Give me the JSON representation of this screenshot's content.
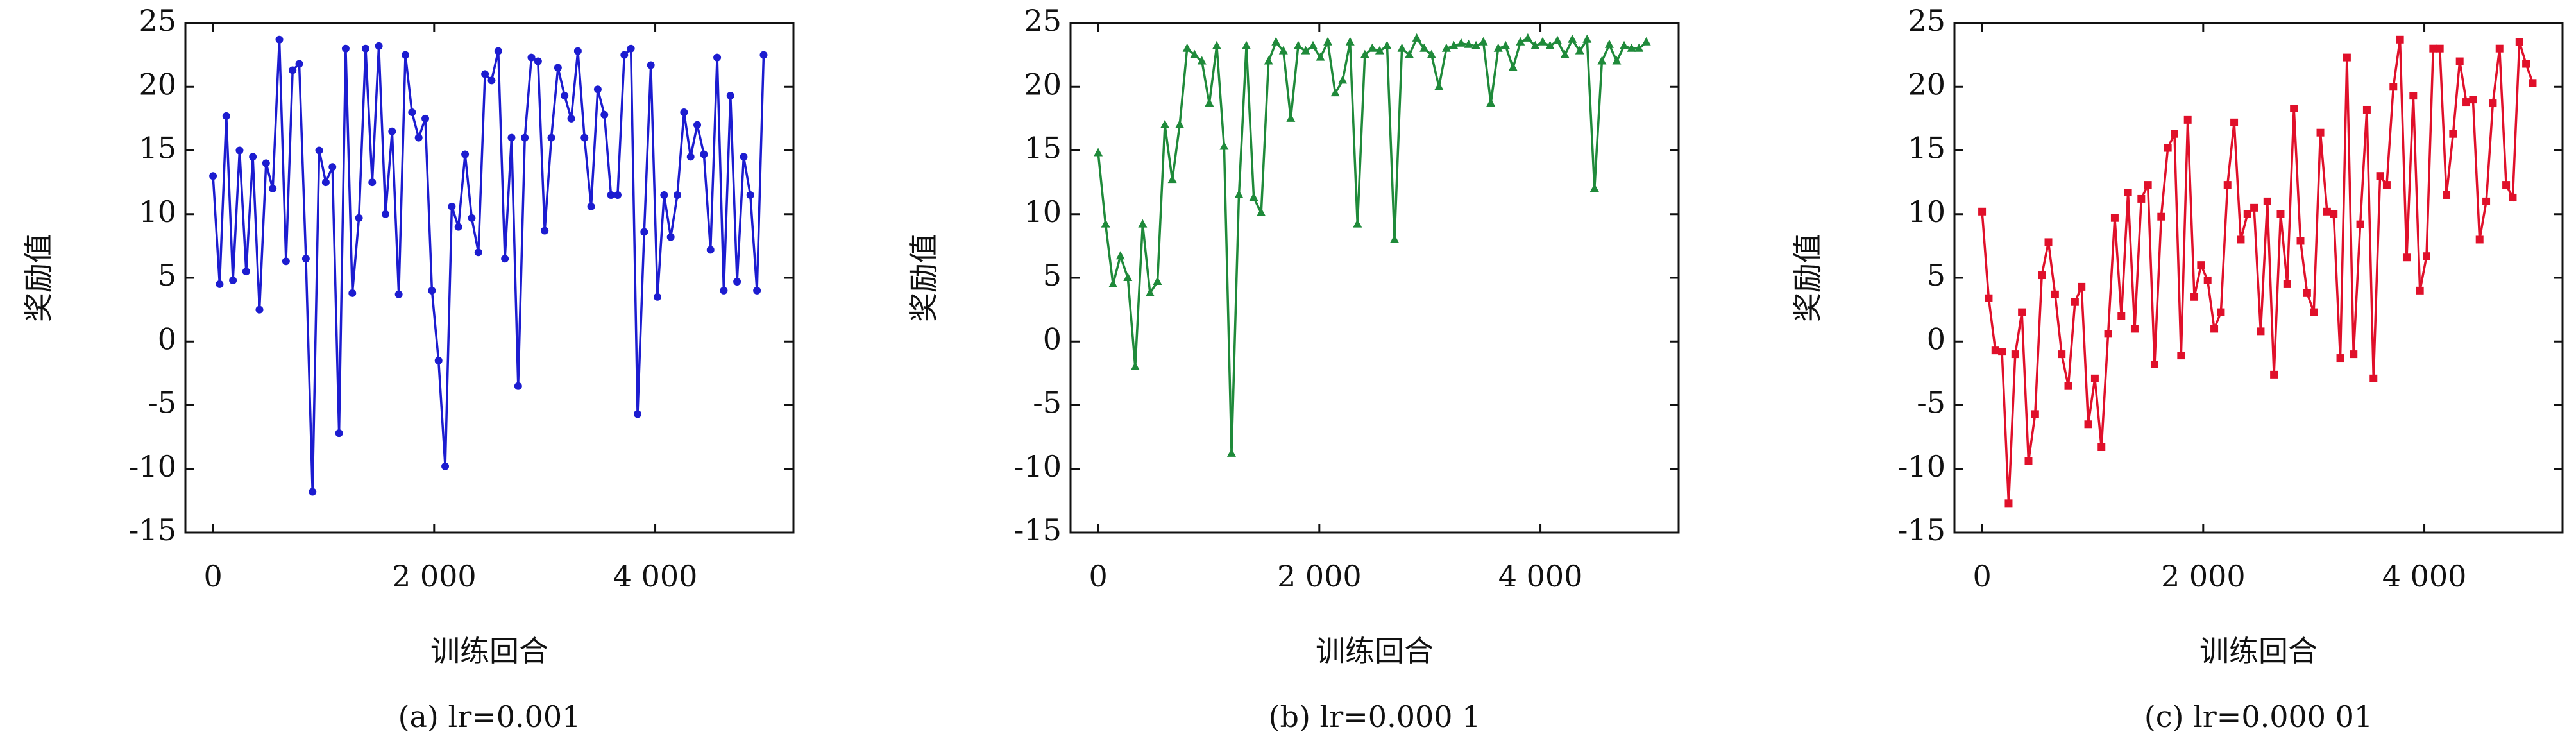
{
  "chart_data": [
    {
      "type": "line",
      "caption": "(a) lr=0.001",
      "xlabel": "训练回合",
      "ylabel": "奖励值",
      "color": "#1c1cd0",
      "marker": "circle",
      "xlim": [
        -250,
        5250
      ],
      "ylim": [
        -15,
        25
      ],
      "xticks": [
        0,
        {
          "value": 2000,
          "label": "2 000"
        },
        {
          "value": 4000,
          "label": "4 000"
        }
      ],
      "yticks": [
        -15,
        -10,
        -5,
        0,
        5,
        10,
        15,
        20,
        25
      ],
      "x": [
        0,
        60,
        120,
        180,
        240,
        300,
        360,
        420,
        480,
        540,
        600,
        660,
        720,
        780,
        840,
        900,
        960,
        1020,
        1080,
        1140,
        1200,
        1260,
        1320,
        1380,
        1440,
        1500,
        1560,
        1620,
        1680,
        1740,
        1800,
        1860,
        1920,
        1980,
        2040,
        2100,
        2160,
        2220,
        2280,
        2340,
        2400,
        2460,
        2520,
        2580,
        2640,
        2700,
        2760,
        2820,
        2880,
        2940,
        3000,
        3060,
        3120,
        3180,
        3240,
        3300,
        3360,
        3420,
        3480,
        3540,
        3600,
        3660,
        3720,
        3780,
        3840,
        3900,
        3960,
        4020,
        4080,
        4140,
        4200,
        4260,
        4320,
        4380,
        4440,
        4500,
        4560,
        4620,
        4680,
        4740,
        4800,
        4860,
        4920,
        4980
      ],
      "values": [
        13,
        4.5,
        17.7,
        4.8,
        15,
        5.5,
        14.5,
        2.5,
        14,
        12,
        23.7,
        6.3,
        21.3,
        21.8,
        6.5,
        -11.8,
        15,
        12.5,
        13.7,
        -7.2,
        23,
        3.8,
        9.7,
        23,
        12.5,
        23.2,
        10,
        16.5,
        3.7,
        22.5,
        18,
        16,
        17.5,
        4,
        -1.5,
        -9.8,
        10.6,
        9,
        14.7,
        9.7,
        7,
        21,
        20.5,
        22.8,
        6.5,
        16,
        -3.5,
        16,
        22.3,
        22,
        8.7,
        16,
        21.5,
        19.3,
        17.5,
        22.8,
        16,
        10.6,
        19.8,
        17.8,
        11.5,
        11.5,
        22.5,
        23,
        -5.7,
        8.6,
        21.7,
        3.5,
        11.5,
        8.2,
        11.5,
        18,
        14.5,
        17,
        14.7,
        7.2,
        22.3,
        4,
        19.3,
        4.7,
        14.5,
        11.5,
        4,
        22.5
      ]
    },
    {
      "type": "line",
      "caption": "(b) lr=0.000 1",
      "xlabel": "训练回合",
      "ylabel": "奖励值",
      "color": "#1f8a3a",
      "marker": "triangle",
      "xlim": [
        -250,
        5250
      ],
      "ylim": [
        -15,
        25
      ],
      "xticks": [
        0,
        {
          "value": 2000,
          "label": "2 000"
        },
        {
          "value": 4000,
          "label": "4 000"
        }
      ],
      "yticks": [
        -15,
        -10,
        -5,
        0,
        5,
        10,
        15,
        20,
        25
      ],
      "x": [
        0,
        67,
        134,
        201,
        268,
        335,
        402,
        469,
        536,
        603,
        670,
        737,
        804,
        871,
        938,
        1005,
        1072,
        1139,
        1206,
        1273,
        1340,
        1407,
        1474,
        1541,
        1608,
        1675,
        1742,
        1809,
        1876,
        1943,
        2010,
        2077,
        2144,
        2211,
        2278,
        2345,
        2412,
        2479,
        2546,
        2613,
        2680,
        2747,
        2814,
        2881,
        2948,
        3015,
        3082,
        3149,
        3216,
        3283,
        3350,
        3417,
        3484,
        3551,
        3618,
        3685,
        3752,
        3819,
        3886,
        3953,
        4020,
        4087,
        4154,
        4221,
        4288,
        4355,
        4422,
        4489,
        4556,
        4623,
        4690,
        4757,
        4824,
        4891,
        4958
      ],
      "values": [
        14.8,
        9.2,
        4.5,
        6.7,
        5,
        -2,
        9.2,
        3.8,
        4.7,
        17,
        12.7,
        17,
        23,
        22.5,
        22,
        18.7,
        23.2,
        15.3,
        -8.8,
        11.5,
        23.2,
        11.3,
        10.1,
        22,
        23.5,
        22.8,
        17.5,
        23.2,
        22.8,
        23.2,
        22.3,
        23.5,
        19.5,
        20.5,
        23.5,
        9.2,
        22.5,
        23,
        22.8,
        23.2,
        8,
        23,
        22.5,
        23.8,
        23,
        22.5,
        20,
        23,
        23.2,
        23.4,
        23.3,
        23.2,
        23.5,
        18.7,
        23,
        23.2,
        21.5,
        23.5,
        23.8,
        23.2,
        23.5,
        23.2,
        23.6,
        22.5,
        23.7,
        22.8,
        23.7,
        12,
        22,
        23.3,
        22,
        23.2,
        23,
        23,
        23.5
      ]
    },
    {
      "type": "line",
      "caption": "(c) lr=0.000 01",
      "xlabel": "训练回合",
      "ylabel": "奖励值",
      "color": "#e0102a",
      "marker": "square",
      "xlim": [
        -250,
        5250
      ],
      "ylim": [
        -15,
        25
      ],
      "xticks": [
        0,
        {
          "value": 2000,
          "label": "2 000"
        },
        {
          "value": 4000,
          "label": "4 000"
        }
      ],
      "yticks": [
        -15,
        -10,
        -5,
        0,
        5,
        10,
        15,
        20,
        25
      ],
      "x": [
        0,
        60,
        120,
        180,
        240,
        300,
        360,
        420,
        480,
        540,
        600,
        660,
        720,
        780,
        840,
        900,
        960,
        1020,
        1080,
        1140,
        1200,
        1260,
        1320,
        1380,
        1440,
        1500,
        1560,
        1620,
        1680,
        1740,
        1800,
        1860,
        1920,
        1980,
        2040,
        2100,
        2160,
        2220,
        2280,
        2340,
        2400,
        2460,
        2520,
        2580,
        2640,
        2700,
        2760,
        2820,
        2880,
        2940,
        3000,
        3060,
        3120,
        3180,
        3240,
        3300,
        3360,
        3420,
        3480,
        3540,
        3600,
        3660,
        3720,
        3780,
        3840,
        3900,
        3960,
        4020,
        4080,
        4140,
        4200,
        4260,
        4320,
        4380,
        4440,
        4500,
        4560,
        4620,
        4680,
        4740,
        4800,
        4860,
        4920,
        4980
      ],
      "values": [
        10.2,
        3.4,
        -0.7,
        -0.8,
        -12.7,
        -1,
        2.3,
        -9.4,
        -5.7,
        5.2,
        7.8,
        3.7,
        -1,
        -3.5,
        3.1,
        4.3,
        -6.5,
        -2.9,
        -8.3,
        0.6,
        9.7,
        2,
        11.7,
        1,
        11.2,
        12.3,
        -1.8,
        9.8,
        15.2,
        16.3,
        -1.1,
        17.4,
        3.5,
        6,
        4.8,
        1,
        2.3,
        12.3,
        17.2,
        8,
        10,
        10.5,
        0.8,
        11,
        -2.6,
        10,
        4.5,
        18.3,
        7.9,
        3.8,
        2.3,
        16.4,
        10.2,
        10,
        -1.3,
        22.3,
        -1,
        9.2,
        18.2,
        -2.9,
        13,
        12.3,
        20,
        23.7,
        6.6,
        19.3,
        4,
        6.7,
        23,
        23,
        11.5,
        16.3,
        22,
        18.8,
        19,
        8,
        11,
        18.7,
        23,
        12.3,
        11.3,
        23.5,
        21.8,
        20.3
      ]
    }
  ]
}
